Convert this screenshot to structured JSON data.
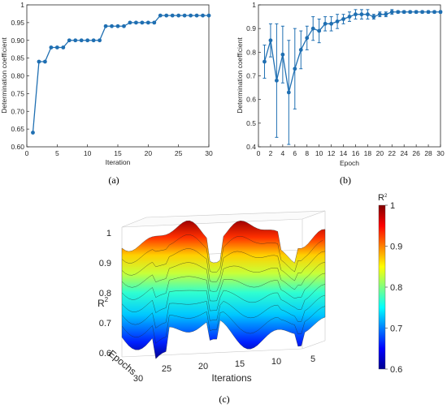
{
  "colors": {
    "line": "#1f6fb2",
    "axis": "#262626",
    "grid": "#d9d9d9"
  },
  "chart_data": [
    {
      "type": "line",
      "caption": "(a)",
      "xlabel": "Iteration",
      "ylabel": "Determination coefficient",
      "xlim": [
        0,
        30
      ],
      "ylim": [
        0.6,
        1.0
      ],
      "xticks": [
        0,
        5,
        10,
        15,
        20,
        25,
        30
      ],
      "yticks": [
        0.6,
        0.65,
        0.7,
        0.75,
        0.8,
        0.85,
        0.9,
        0.95,
        1
      ],
      "ytick_labels": [
        "0.60",
        "0.65",
        "0.70",
        "0.75",
        "0.80",
        "0.85",
        "0.90",
        "0.95",
        "1"
      ],
      "x": [
        1,
        2,
        3,
        4,
        5,
        6,
        7,
        8,
        9,
        10,
        11,
        12,
        13,
        14,
        15,
        16,
        17,
        18,
        19,
        20,
        21,
        22,
        23,
        24,
        25,
        26,
        27,
        28,
        29,
        30
      ],
      "y": [
        0.64,
        0.84,
        0.84,
        0.88,
        0.88,
        0.88,
        0.9,
        0.9,
        0.9,
        0.9,
        0.9,
        0.9,
        0.94,
        0.94,
        0.94,
        0.94,
        0.95,
        0.95,
        0.95,
        0.95,
        0.95,
        0.97,
        0.97,
        0.97,
        0.97,
        0.97,
        0.97,
        0.97,
        0.97,
        0.97
      ]
    },
    {
      "type": "line",
      "caption": "(b)",
      "xlabel": "Epoch",
      "ylabel": "Determination coefficient",
      "xlim": [
        0,
        30
      ],
      "ylim": [
        0.4,
        1.0
      ],
      "xticks": [
        0,
        2,
        4,
        6,
        8,
        10,
        12,
        14,
        16,
        18,
        20,
        22,
        24,
        26,
        28,
        30
      ],
      "yticks": [
        0.4,
        0.5,
        0.6,
        0.7,
        0.8,
        0.9,
        1
      ],
      "ytick_labels": [
        "0.4",
        "0.5",
        "0.6",
        "0.7",
        "0.8",
        "0.9",
        "1"
      ],
      "x": [
        1,
        2,
        3,
        4,
        5,
        6,
        7,
        8,
        9,
        10,
        11,
        12,
        13,
        14,
        15,
        16,
        17,
        18,
        19,
        20,
        21,
        22,
        23,
        24,
        25,
        26,
        27,
        28,
        29,
        30
      ],
      "y": [
        0.76,
        0.85,
        0.68,
        0.79,
        0.63,
        0.73,
        0.81,
        0.86,
        0.9,
        0.89,
        0.92,
        0.92,
        0.93,
        0.94,
        0.95,
        0.96,
        0.96,
        0.96,
        0.95,
        0.96,
        0.96,
        0.97,
        0.97,
        0.97,
        0.97,
        0.97,
        0.97,
        0.97,
        0.97,
        0.97
      ],
      "error": [
        0.07,
        0.07,
        0.24,
        0.12,
        0.22,
        0.17,
        0.08,
        0.05,
        0.05,
        0.05,
        0.03,
        0.03,
        0.03,
        0.02,
        0.02,
        0.02,
        0.02,
        0.02,
        0.01,
        0.01,
        0.01,
        0.01,
        0.005,
        0.005,
        0.005,
        0.005,
        0.005,
        0.005,
        0.005,
        0.005
      ]
    },
    {
      "type": "surface",
      "caption": "(c)",
      "zlabel": "R",
      "zlabel_sup": "2",
      "xlabel": "Iterations",
      "ylabel": "Epochs",
      "zticks": [
        "0.6",
        "0.7",
        "0.8",
        "0.9",
        "1"
      ],
      "xticks": [
        "25",
        "20",
        "15",
        "10",
        "5"
      ],
      "yticks": [
        "30"
      ],
      "colorbar": {
        "title": "R",
        "title_sup": "2",
        "range": [
          0.6,
          1.0
        ],
        "ticks": [
          "1",
          "0.9",
          "0.8",
          "0.7",
          "0.6"
        ],
        "colormap": "jet"
      }
    }
  ]
}
